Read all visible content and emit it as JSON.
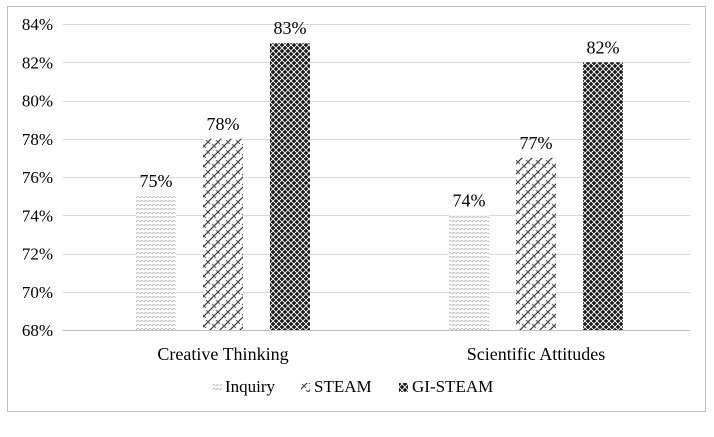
{
  "chart_data": {
    "type": "bar",
    "title": "",
    "xlabel": "",
    "ylabel": "",
    "categories": [
      "Creative Thinking",
      "Scientific Attitudes"
    ],
    "series": [
      {
        "name": "Inquiry",
        "values": [
          75,
          74
        ],
        "pattern": "light-weave"
      },
      {
        "name": "STEAM",
        "values": [
          78,
          77
        ],
        "pattern": "diagonal-zigzag"
      },
      {
        "name": "GI-STEAM",
        "values": [
          83,
          82
        ],
        "pattern": "dense-crosshatch"
      }
    ],
    "data_labels": [
      [
        "75%",
        "74%"
      ],
      [
        "78%",
        "77%"
      ],
      [
        "83%",
        "82%"
      ]
    ],
    "ylim": [
      68,
      84
    ],
    "y_ticks": [
      68,
      70,
      72,
      74,
      76,
      78,
      80,
      82,
      84
    ],
    "y_tick_labels": [
      "68%",
      "70%",
      "72%",
      "74%",
      "76%",
      "78%",
      "80%",
      "82%",
      "84%"
    ],
    "grid": true,
    "legend_position": "bottom",
    "colors": {
      "gridline": "#d9d9d9",
      "axis": "#bfbfbf",
      "ink": "#000000",
      "frame": "#bfbfbf"
    }
  }
}
